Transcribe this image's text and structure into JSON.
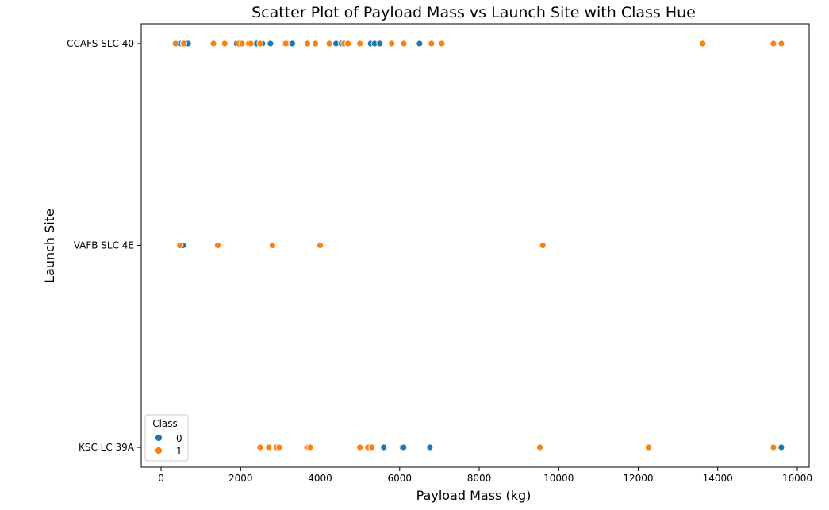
{
  "chart_data": {
    "type": "scatter",
    "title": "Scatter Plot of Payload Mass vs Launch Site with Class Hue",
    "xlabel": "Payload Mass (kg)",
    "ylabel": "Launch Site",
    "xlim": [
      -500,
      16300
    ],
    "x_ticks": [
      0,
      2000,
      4000,
      6000,
      8000,
      10000,
      12000,
      14000,
      16000
    ],
    "categories": [
      "CCAFS SLC 40",
      "VAFB SLC 4E",
      "KSC LC 39A"
    ],
    "legend": {
      "title": "Class",
      "position": "lower-left"
    },
    "grid": false,
    "series": [
      {
        "name": "0",
        "color": "#1f77b4",
        "points": [
          {
            "site": "CCAFS SLC 40",
            "x": 500
          },
          {
            "site": "CCAFS SLC 40",
            "x": 560
          },
          {
            "site": "CCAFS SLC 40",
            "x": 680
          },
          {
            "site": "CCAFS SLC 40",
            "x": 1900
          },
          {
            "site": "CCAFS SLC 40",
            "x": 2400
          },
          {
            "site": "CCAFS SLC 40",
            "x": 2550
          },
          {
            "site": "CCAFS SLC 40",
            "x": 2750
          },
          {
            "site": "CCAFS SLC 40",
            "x": 3170
          },
          {
            "site": "CCAFS SLC 40",
            "x": 3300
          },
          {
            "site": "CCAFS SLC 40",
            "x": 4400
          },
          {
            "site": "CCAFS SLC 40",
            "x": 4535
          },
          {
            "site": "CCAFS SLC 40",
            "x": 5270
          },
          {
            "site": "CCAFS SLC 40",
            "x": 5370
          },
          {
            "site": "CCAFS SLC 40",
            "x": 5500
          },
          {
            "site": "CCAFS SLC 40",
            "x": 6500
          },
          {
            "site": "VAFB SLC 4E",
            "x": 553
          },
          {
            "site": "KSC LC 39A",
            "x": 5600
          },
          {
            "site": "KSC LC 39A",
            "x": 6070
          },
          {
            "site": "KSC LC 39A",
            "x": 6100
          },
          {
            "site": "KSC LC 39A",
            "x": 6761
          },
          {
            "site": "KSC LC 39A",
            "x": 15600
          }
        ]
      },
      {
        "name": "1",
        "color": "#ff7f0e",
        "points": [
          {
            "site": "CCAFS SLC 40",
            "x": 362
          },
          {
            "site": "CCAFS SLC 40",
            "x": 570
          },
          {
            "site": "CCAFS SLC 40",
            "x": 1316
          },
          {
            "site": "CCAFS SLC 40",
            "x": 1600
          },
          {
            "site": "CCAFS SLC 40",
            "x": 1952
          },
          {
            "site": "CCAFS SLC 40",
            "x": 2034
          },
          {
            "site": "CCAFS SLC 40",
            "x": 2205
          },
          {
            "site": "CCAFS SLC 40",
            "x": 2257
          },
          {
            "site": "CCAFS SLC 40",
            "x": 2490
          },
          {
            "site": "CCAFS SLC 40",
            "x": 3100
          },
          {
            "site": "CCAFS SLC 40",
            "x": 3136
          },
          {
            "site": "CCAFS SLC 40",
            "x": 3681
          },
          {
            "site": "CCAFS SLC 40",
            "x": 3880
          },
          {
            "site": "CCAFS SLC 40",
            "x": 4230
          },
          {
            "site": "CCAFS SLC 40",
            "x": 4600
          },
          {
            "site": "CCAFS SLC 40",
            "x": 4700
          },
          {
            "site": "CCAFS SLC 40",
            "x": 5000
          },
          {
            "site": "CCAFS SLC 40",
            "x": 5800
          },
          {
            "site": "CCAFS SLC 40",
            "x": 6104
          },
          {
            "site": "CCAFS SLC 40",
            "x": 6800
          },
          {
            "site": "CCAFS SLC 40",
            "x": 7060
          },
          {
            "site": "CCAFS SLC 40",
            "x": 13620
          },
          {
            "site": "CCAFS SLC 40",
            "x": 15400
          },
          {
            "site": "CCAFS SLC 40",
            "x": 15600
          },
          {
            "site": "VAFB SLC 4E",
            "x": 475
          },
          {
            "site": "VAFB SLC 4E",
            "x": 1425
          },
          {
            "site": "VAFB SLC 4E",
            "x": 2800
          },
          {
            "site": "VAFB SLC 4E",
            "x": 4000
          },
          {
            "site": "VAFB SLC 4E",
            "x": 9600
          },
          {
            "site": "KSC LC 39A",
            "x": 2490
          },
          {
            "site": "KSC LC 39A",
            "x": 2708
          },
          {
            "site": "KSC LC 39A",
            "x": 2900
          },
          {
            "site": "KSC LC 39A",
            "x": 2970
          },
          {
            "site": "KSC LC 39A",
            "x": 3669
          },
          {
            "site": "KSC LC 39A",
            "x": 3700
          },
          {
            "site": "KSC LC 39A",
            "x": 3750
          },
          {
            "site": "KSC LC 39A",
            "x": 5000
          },
          {
            "site": "KSC LC 39A",
            "x": 5200
          },
          {
            "site": "KSC LC 39A",
            "x": 5300
          },
          {
            "site": "KSC LC 39A",
            "x": 9525
          },
          {
            "site": "KSC LC 39A",
            "x": 12259
          },
          {
            "site": "KSC LC 39A",
            "x": 15400
          }
        ]
      }
    ]
  }
}
